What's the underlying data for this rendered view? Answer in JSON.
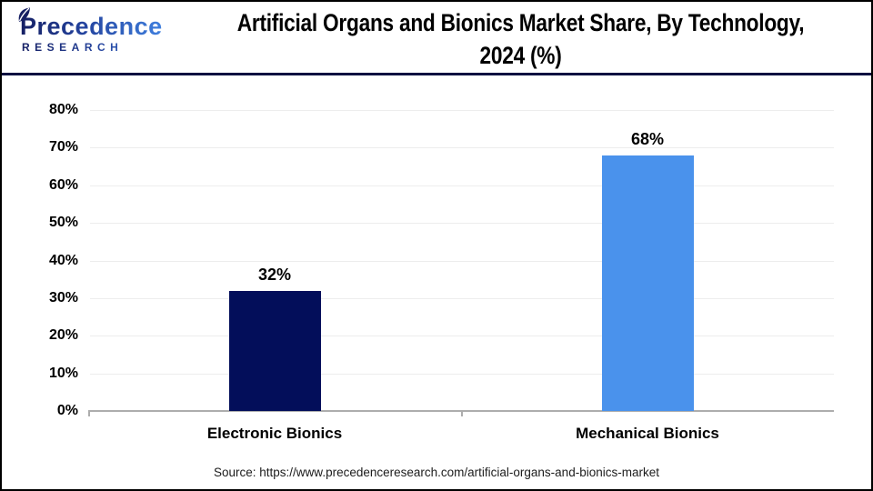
{
  "header": {
    "brand": {
      "name": "Precedence",
      "tagline": "RESEARCH"
    },
    "title_line1": "Artificial Organs and Bionics Market Share, By Technology,",
    "title_line2": "2024 (%)"
  },
  "chart_data": {
    "type": "bar",
    "title": "Artificial Organs and Bionics Market Share, By Technology, 2024 (%)",
    "categories": [
      "Electronic Bionics",
      "Mechanical Bionics"
    ],
    "values": [
      32,
      68
    ],
    "data_labels": [
      "32%",
      "68%"
    ],
    "unit": "%",
    "xlabel": "",
    "ylabel": "",
    "ylim": [
      0,
      80
    ],
    "ytick_step": 10,
    "ytick_labels": [
      "0%",
      "10%",
      "20%",
      "30%",
      "40%",
      "50%",
      "60%",
      "70%",
      "80%"
    ],
    "grid": "horizontal-on",
    "legend": "none",
    "bar_colors": [
      "#030e5a",
      "#4a92ec"
    ]
  },
  "footer": {
    "source": "Source: https://www.precedenceresearch.com/artificial-organs-and-bionics-market"
  },
  "colors": {
    "bar_navy": "#030e5a",
    "bar_blue": "#4a92ec",
    "header_rule": "#0a1040",
    "gridline": "#ededed",
    "axis_line": "#adadad",
    "logo_dark": "#151f63",
    "logo_light": "#3f7fde",
    "frame_border": "#000000"
  }
}
